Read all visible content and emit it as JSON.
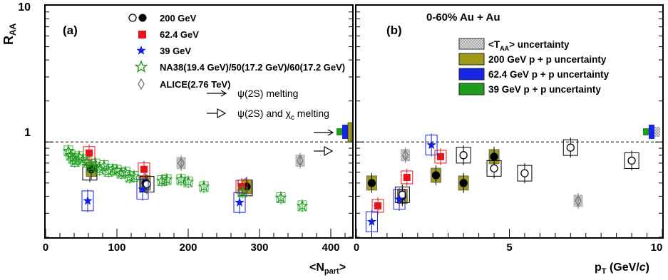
{
  "figure": {
    "y_title": "R",
    "y_title_sub": "AA",
    "y_tick_10": "10",
    "y_tick_1": "1"
  },
  "chart_data": [
    {
      "type": "scatter",
      "panel_label": "(a)",
      "xlabel": "<N",
      "xlabel_sub": "part",
      "xlabel_end": ">",
      "xlim": [
        0,
        430
      ],
      "ylim": [
        0.2,
        10
      ],
      "y_scale": "log",
      "x_ticks": [
        "0",
        "100",
        "200",
        "300",
        "400"
      ],
      "reference_line": 1,
      "legend_location": "top-left",
      "legend": [
        {
          "marker": "circle",
          "label": "200 GeV"
        },
        {
          "marker": "square",
          "label": "62.4 GeV"
        },
        {
          "marker": "star",
          "label": "39 GeV"
        },
        {
          "marker": "open-star",
          "label": "NA38(19.4 GeV)/50(17.2 GeV)/60(17.2 GeV)"
        },
        {
          "marker": "open-diamond",
          "label": "ALICE(2.76 TeV)"
        }
      ],
      "annotations": [
        {
          "symbol": "→",
          "text": "ψ(2S) melting"
        },
        {
          "symbol": "▷",
          "text": "ψ(2S) and  χ",
          "text_sub": "c",
          "text_end": " melting"
        }
      ],
      "series": [
        {
          "name": "200 GeV",
          "color": "#000000",
          "points": [
            {
              "x": 62,
              "y": 0.6,
              "open": true
            },
            {
              "x": 64,
              "y": 0.63,
              "open": false
            },
            {
              "x": 140,
              "y": 0.5,
              "open": false
            },
            {
              "x": 142,
              "y": 0.49,
              "open": true
            },
            {
              "x": 280,
              "y": 0.46,
              "open": true
            },
            {
              "x": 282,
              "y": 0.47,
              "open": false
            }
          ]
        },
        {
          "name": "62.4 GeV",
          "color": "#e8141b",
          "points": [
            {
              "x": 61,
              "y": 0.83
            },
            {
              "x": 138,
              "y": 0.63
            },
            {
              "x": 275,
              "y": 0.47
            }
          ]
        },
        {
          "name": "39 GeV",
          "color": "#1521e0",
          "points": [
            {
              "x": 59,
              "y": 0.37
            },
            {
              "x": 136,
              "y": 0.45
            },
            {
              "x": 272,
              "y": 0.36
            }
          ]
        },
        {
          "name": "NA38(19.4 GeV)/50(17.2 GeV)/60(17.2 GeV)",
          "color": "#1e9c1e",
          "points": [
            {
              "x": 32,
              "y": 0.86
            },
            {
              "x": 35,
              "y": 0.8
            },
            {
              "x": 38,
              "y": 0.76
            },
            {
              "x": 41,
              "y": 0.72
            },
            {
              "x": 47,
              "y": 0.78
            },
            {
              "x": 52,
              "y": 0.74
            },
            {
              "x": 58,
              "y": 0.71
            },
            {
              "x": 64,
              "y": 0.66
            },
            {
              "x": 70,
              "y": 0.69
            },
            {
              "x": 76,
              "y": 0.63
            },
            {
              "x": 82,
              "y": 0.67
            },
            {
              "x": 88,
              "y": 0.61
            },
            {
              "x": 94,
              "y": 0.63
            },
            {
              "x": 100,
              "y": 0.62
            },
            {
              "x": 106,
              "y": 0.59
            },
            {
              "x": 112,
              "y": 0.6
            },
            {
              "x": 118,
              "y": 0.55
            },
            {
              "x": 124,
              "y": 0.56
            },
            {
              "x": 163,
              "y": 0.52
            },
            {
              "x": 170,
              "y": 0.53
            },
            {
              "x": 190,
              "y": 0.53
            },
            {
              "x": 200,
              "y": 0.51
            },
            {
              "x": 222,
              "y": 0.47
            },
            {
              "x": 276,
              "y": 0.43
            },
            {
              "x": 330,
              "y": 0.39
            },
            {
              "x": 360,
              "y": 0.34
            }
          ]
        },
        {
          "name": "ALICE(2.76 TeV)",
          "color": "#999999",
          "points": [
            {
              "x": 190,
              "y": 0.7
            },
            {
              "x": 357,
              "y": 0.73
            }
          ]
        }
      ]
    },
    {
      "type": "scatter",
      "panel_label": "(b)",
      "title": "0-60% Au + Au",
      "xlabel": "p",
      "xlabel_sub": "T",
      "xlabel_end": " (GeV/",
      "xlabel_c": "c",
      "xlabel_close": ")",
      "xlim": [
        0,
        10
      ],
      "ylim": [
        0.2,
        10
      ],
      "y_scale": "log",
      "x_ticks": [
        "0",
        "5",
        "10"
      ],
      "reference_line": 1,
      "legend_location": "top-right",
      "legend": [
        {
          "swatch": "hatched-grey",
          "label": "<T",
          "label_sub": "AA",
          "label_end": "> uncertainty"
        },
        {
          "swatch": "#a09a1c",
          "label": "200 GeV p + p uncertainty"
        },
        {
          "swatch": "#1725e6",
          "label": "62.4 GeV p + p uncertainty"
        },
        {
          "swatch": "#1e9c1e",
          "label": "39 GeV p + p uncertainty"
        }
      ],
      "series": [
        {
          "name": "200 GeV",
          "color": "#000000",
          "points": [
            {
              "x": 0.5,
              "y": 0.5,
              "open": false
            },
            {
              "x": 1.5,
              "y": 0.4,
              "open": false
            },
            {
              "x": 2.6,
              "y": 0.57,
              "open": false
            },
            {
              "x": 3.5,
              "y": 0.5,
              "open": false
            },
            {
              "x": 4.5,
              "y": 0.78,
              "open": false
            },
            {
              "x": 1.5,
              "y": 0.41,
              "open": true
            },
            {
              "x": 3.5,
              "y": 0.8,
              "open": true
            },
            {
              "x": 4.5,
              "y": 0.64,
              "open": true
            },
            {
              "x": 5.5,
              "y": 0.59,
              "open": true
            },
            {
              "x": 7.0,
              "y": 0.91,
              "open": true
            },
            {
              "x": 9.0,
              "y": 0.73,
              "open": true
            }
          ]
        },
        {
          "name": "62.4 GeV",
          "color": "#e8141b",
          "points": [
            {
              "x": 0.7,
              "y": 0.34
            },
            {
              "x": 1.65,
              "y": 0.55
            },
            {
              "x": 2.75,
              "y": 0.78
            }
          ]
        },
        {
          "name": "39 GeV",
          "color": "#1521e0",
          "points": [
            {
              "x": 0.5,
              "y": 0.26
            },
            {
              "x": 1.4,
              "y": 0.38
            },
            {
              "x": 2.45,
              "y": 0.95
            }
          ]
        },
        {
          "name": "ALICE(2.76 TeV)",
          "color": "#999999",
          "points": [
            {
              "x": 1.6,
              "y": 0.8
            },
            {
              "x": 7.25,
              "y": 0.37
            }
          ]
        }
      ]
    }
  ]
}
